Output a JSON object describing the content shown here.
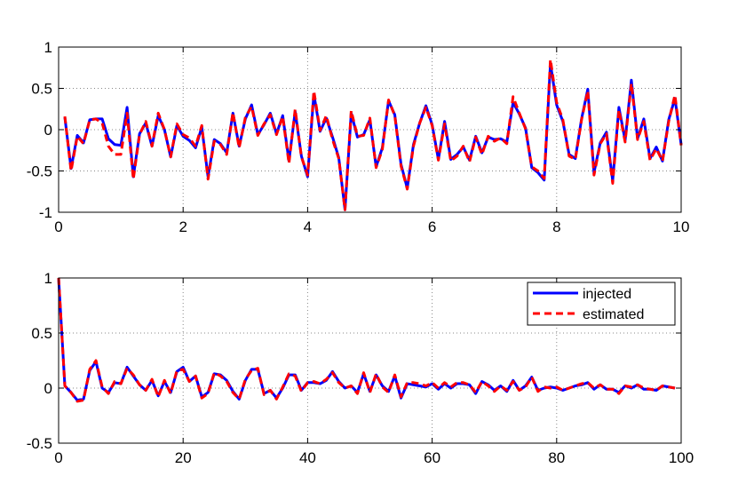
{
  "chart_data": [
    {
      "type": "line",
      "title": "",
      "xlabel": "",
      "ylabel": "",
      "xlim": [
        0,
        10
      ],
      "ylim": [
        -1,
        1
      ],
      "grid": true,
      "x_ticks": [
        0,
        2,
        4,
        6,
        8,
        10
      ],
      "x_tick_labels": [
        "0",
        "2",
        "4",
        "6",
        "8",
        "10"
      ],
      "y_ticks": [
        -1,
        -0.5,
        0,
        0.5,
        1
      ],
      "y_tick_labels": [
        "-1",
        "-0.5",
        "0",
        "0.5",
        "1"
      ],
      "x_start": 0.1,
      "x_step": 0.1,
      "series": [
        {
          "color": "#0000ff",
          "style": "solid",
          "values": [
            0.15,
            -0.47,
            -0.07,
            -0.16,
            0.12,
            0.13,
            0.13,
            -0.11,
            -0.18,
            -0.19,
            0.27,
            -0.57,
            -0.05,
            0.08,
            -0.2,
            0.17,
            0.0,
            -0.33,
            0.05,
            -0.08,
            -0.13,
            -0.22,
            0.03,
            -0.57,
            -0.12,
            -0.17,
            -0.28,
            0.2,
            -0.2,
            0.13,
            0.3,
            -0.06,
            0.06,
            0.2,
            -0.05,
            0.17,
            -0.38,
            0.22,
            -0.32,
            -0.57,
            0.43,
            -0.02,
            0.14,
            -0.09,
            -0.34,
            -0.97,
            0.2,
            -0.09,
            -0.06,
            0.12,
            -0.45,
            -0.22,
            0.35,
            0.18,
            -0.42,
            -0.71,
            -0.18,
            0.08,
            0.29,
            0.06,
            -0.36,
            0.1,
            -0.36,
            -0.3,
            -0.21,
            -0.37,
            -0.08,
            -0.28,
            -0.09,
            -0.12,
            -0.11,
            -0.15,
            0.33,
            0.19,
            0.02,
            -0.46,
            -0.52,
            -0.61,
            0.8,
            0.3,
            0.1,
            -0.3,
            -0.35,
            0.13,
            0.49,
            -0.52,
            -0.16,
            -0.03,
            -0.62,
            0.27,
            -0.13,
            0.6,
            -0.11,
            0.13,
            -0.35,
            -0.21,
            -0.38,
            0.12,
            0.38,
            -0.18
          ]
        },
        {
          "color": "#ff0000",
          "style": "dashed",
          "values": [
            0.16,
            -0.5,
            -0.08,
            -0.17,
            0.12,
            0.13,
            0.08,
            -0.2,
            -0.3,
            -0.3,
            0.2,
            -0.6,
            -0.06,
            0.1,
            -0.2,
            0.2,
            0.0,
            -0.33,
            0.07,
            -0.06,
            -0.1,
            -0.2,
            0.05,
            -0.6,
            -0.14,
            -0.18,
            -0.3,
            0.21,
            -0.22,
            0.15,
            0.28,
            -0.07,
            0.07,
            0.18,
            -0.06,
            0.16,
            -0.41,
            0.25,
            -0.33,
            -0.55,
            0.47,
            -0.01,
            0.17,
            -0.12,
            -0.35,
            -0.97,
            0.23,
            -0.08,
            -0.07,
            0.14,
            -0.46,
            -0.24,
            0.36,
            0.17,
            -0.44,
            -0.72,
            -0.2,
            0.08,
            0.27,
            0.05,
            -0.37,
            0.07,
            -0.38,
            -0.32,
            -0.2,
            -0.39,
            -0.09,
            -0.3,
            -0.08,
            -0.14,
            -0.1,
            -0.17,
            0.4,
            0.2,
            0.01,
            -0.45,
            -0.5,
            -0.59,
            0.85,
            0.33,
            0.12,
            -0.32,
            -0.36,
            0.12,
            0.47,
            -0.55,
            -0.17,
            -0.05,
            -0.65,
            0.24,
            -0.15,
            0.56,
            -0.12,
            0.1,
            -0.37,
            -0.23,
            -0.38,
            0.1,
            0.42,
            -0.19
          ]
        }
      ]
    },
    {
      "type": "line",
      "title": "",
      "xlabel": "",
      "ylabel": "",
      "xlim": [
        0,
        100
      ],
      "ylim": [
        -0.5,
        1
      ],
      "grid": true,
      "x_ticks": [
        0,
        20,
        40,
        60,
        80,
        100
      ],
      "x_tick_labels": [
        "0",
        "20",
        "40",
        "60",
        "80",
        "100"
      ],
      "y_ticks": [
        -0.5,
        0,
        0.5,
        1
      ],
      "y_tick_labels": [
        "-0.5",
        "0",
        "0.5",
        "1"
      ],
      "x_start": 0,
      "x_step": 1,
      "legend": {
        "position": "top-right"
      },
      "series": [
        {
          "name": "injected",
          "color": "#0000ff",
          "style": "solid",
          "values": [
            1.0,
            0.02,
            -0.04,
            -0.11,
            -0.1,
            0.16,
            0.24,
            0.0,
            -0.04,
            0.05,
            0.04,
            0.19,
            0.11,
            0.03,
            -0.02,
            0.07,
            -0.07,
            0.06,
            -0.04,
            0.15,
            0.19,
            0.06,
            0.11,
            -0.08,
            -0.04,
            0.13,
            0.12,
            0.07,
            -0.03,
            -0.1,
            0.07,
            0.17,
            0.17,
            -0.05,
            -0.02,
            -0.09,
            0.0,
            0.12,
            0.12,
            -0.02,
            0.05,
            0.05,
            0.04,
            0.07,
            0.15,
            0.06,
            0.0,
            0.02,
            -0.04,
            0.13,
            -0.03,
            0.12,
            0.02,
            -0.03,
            0.11,
            -0.09,
            0.04,
            0.03,
            0.02,
            0.01,
            0.04,
            -0.01,
            0.04,
            0.0,
            0.04,
            0.04,
            0.03,
            -0.05,
            0.06,
            0.03,
            -0.02,
            0.02,
            -0.03,
            0.07,
            -0.02,
            0.02,
            0.1,
            -0.02,
            0.0,
            0.01,
            0.0,
            -0.02,
            0.0,
            0.02,
            0.03,
            0.05,
            -0.01,
            0.03,
            -0.01,
            -0.01,
            -0.04,
            0.02,
            0.0,
            0.03,
            -0.01,
            -0.01,
            -0.02,
            0.02,
            0.01,
            0.0
          ]
        },
        {
          "name": "estimated",
          "color": "#ff0000",
          "style": "dashed",
          "values": [
            1.0,
            0.02,
            -0.04,
            -0.12,
            -0.11,
            0.17,
            0.25,
            0.01,
            -0.05,
            0.06,
            0.04,
            0.18,
            0.12,
            0.03,
            -0.02,
            0.08,
            -0.08,
            0.07,
            -0.05,
            0.16,
            0.17,
            0.06,
            0.11,
            -0.09,
            -0.05,
            0.14,
            0.11,
            0.06,
            -0.04,
            -0.1,
            0.08,
            0.16,
            0.18,
            -0.06,
            -0.02,
            -0.1,
            0.01,
            0.13,
            0.11,
            -0.03,
            0.05,
            0.06,
            0.04,
            0.08,
            0.14,
            0.05,
            0.0,
            0.02,
            -0.05,
            0.14,
            -0.04,
            0.13,
            0.01,
            -0.04,
            0.12,
            -0.08,
            0.05,
            0.05,
            0.04,
            0.02,
            0.05,
            0.0,
            0.05,
            0.01,
            0.05,
            0.05,
            0.03,
            -0.04,
            0.06,
            0.02,
            -0.03,
            0.02,
            -0.02,
            0.06,
            -0.02,
            0.01,
            0.1,
            -0.03,
            0.01,
            0.0,
            0.01,
            -0.02,
            0.0,
            0.02,
            0.04,
            0.05,
            0.0,
            0.03,
            -0.01,
            -0.01,
            -0.05,
            0.02,
            0.01,
            0.03,
            0.0,
            -0.01,
            -0.02,
            0.02,
            0.01,
            0.0
          ]
        }
      ]
    }
  ]
}
